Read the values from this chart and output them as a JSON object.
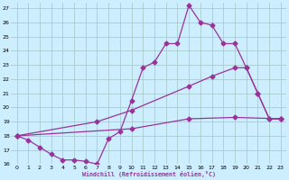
{
  "xlabel": "Windchill (Refroidissement éolien,°C)",
  "bg_color": "#cceeff",
  "grid_color": "#aacccc",
  "line_color": "#993399",
  "xlim": [
    -0.5,
    23.5
  ],
  "ylim": [
    16,
    27.4
  ],
  "yticks": [
    16,
    17,
    18,
    19,
    20,
    21,
    22,
    23,
    24,
    25,
    26,
    27
  ],
  "xticks": [
    0,
    1,
    2,
    3,
    4,
    5,
    6,
    7,
    8,
    9,
    10,
    11,
    12,
    13,
    14,
    15,
    16,
    17,
    18,
    19,
    20,
    21,
    22,
    23
  ],
  "line1_x": [
    0,
    1,
    2,
    3,
    4,
    5,
    6,
    7,
    8,
    9,
    10,
    11,
    12,
    13,
    14,
    15,
    16,
    17,
    18,
    19,
    20,
    21,
    22,
    23
  ],
  "line1_y": [
    18.0,
    17.7,
    17.2,
    16.7,
    16.3,
    16.3,
    16.2,
    16.0,
    17.8,
    18.3,
    20.5,
    22.8,
    23.2,
    24.5,
    24.5,
    27.2,
    26.0,
    25.8,
    24.5,
    24.5,
    22.8,
    21.0,
    19.2,
    19.2
  ],
  "line2_x": [
    0,
    7,
    10,
    15,
    17,
    19,
    20,
    21,
    22,
    23
  ],
  "line2_y": [
    18.0,
    19.0,
    19.8,
    21.5,
    22.2,
    22.8,
    22.8,
    21.0,
    19.2,
    19.2
  ],
  "line3_x": [
    0,
    10,
    15,
    19,
    23
  ],
  "line3_y": [
    18.0,
    18.5,
    19.2,
    19.3,
    19.2
  ],
  "markersize": 2.5,
  "linewidth": 0.9
}
